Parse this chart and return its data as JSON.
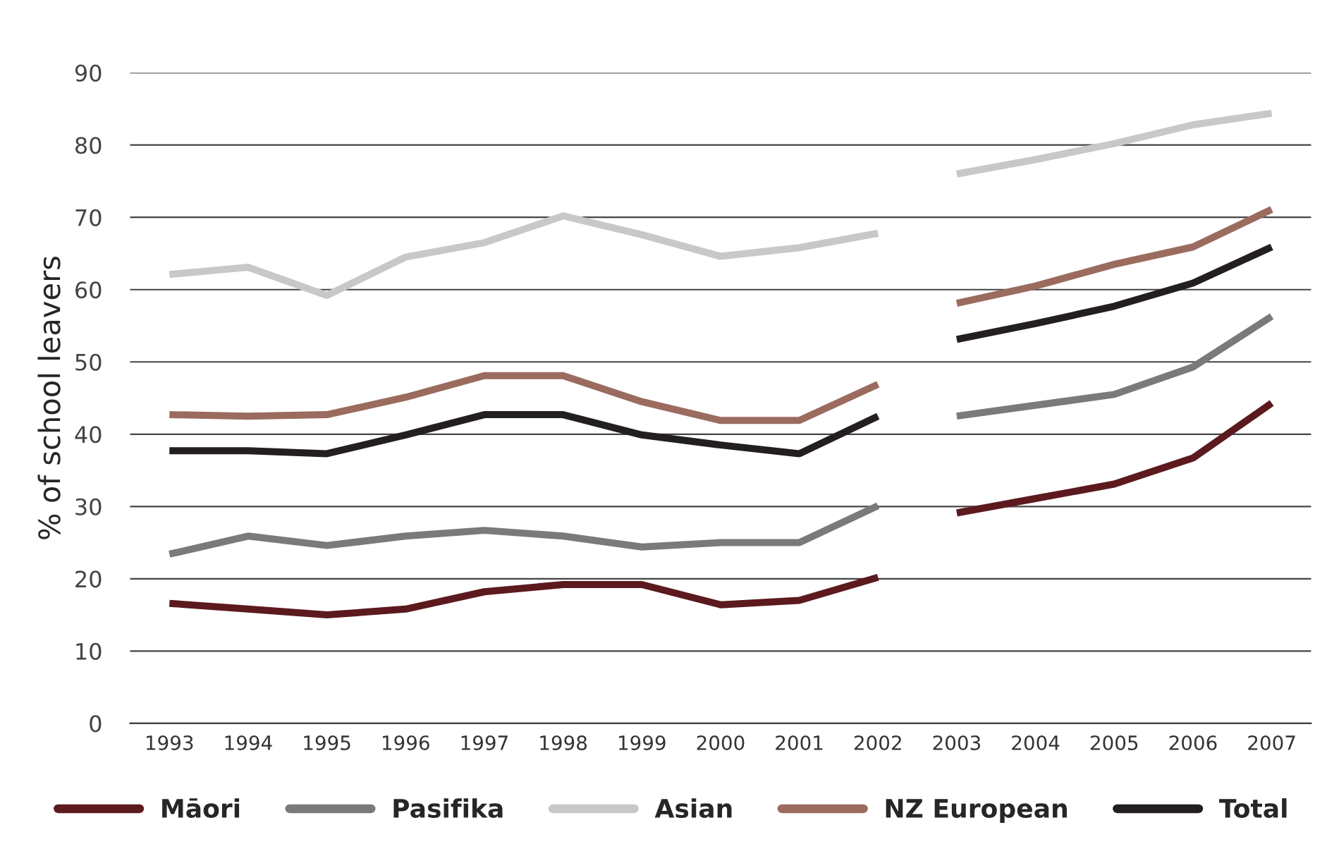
{
  "chart_data": {
    "type": "line",
    "ylabel": "% of school leavers",
    "series": [
      {
        "name": "Māori",
        "color": "#5c1a1e",
        "x": [
          1993,
          1994,
          1995,
          1996,
          1997,
          1998,
          1999,
          2000,
          2001,
          2002
        ],
        "values": [
          16.6,
          15.8,
          15.0,
          15.8,
          18.2,
          19.2,
          19.2,
          16.4,
          17.0,
          20.2
        ]
      },
      {
        "color": "#5c1a1e",
        "x": [
          2003,
          2004,
          2005,
          2006,
          2007
        ],
        "values": [
          29.1,
          31.1,
          33.1,
          36.7,
          44.3
        ]
      },
      {
        "name": "Pasifika",
        "color": "#7a7a7c",
        "x": [
          1993,
          1994,
          1995,
          1996,
          1997,
          1998,
          1999,
          2000,
          2001,
          2002
        ],
        "values": [
          23.4,
          25.9,
          24.6,
          25.9,
          26.7,
          25.9,
          24.4,
          25.0,
          25.0,
          30.1
        ]
      },
      {
        "color": "#7a7a7c",
        "x": [
          2003,
          2004,
          2005,
          2006,
          2007
        ],
        "values": [
          42.5,
          44.0,
          45.5,
          49.3,
          56.3
        ]
      },
      {
        "name": "Asian",
        "color": "#c8c8c8",
        "x": [
          1993,
          1994,
          1995,
          1996,
          1997,
          1998,
          1999,
          2000,
          2001,
          2002
        ],
        "values": [
          62.1,
          63.1,
          59.2,
          64.5,
          66.5,
          70.2,
          67.6,
          64.6,
          65.8,
          67.8
        ]
      },
      {
        "color": "#c8c8c8",
        "x": [
          2003,
          2004,
          2005,
          2006,
          2007
        ],
        "values": [
          76.0,
          78.0,
          80.2,
          82.8,
          84.4
        ]
      },
      {
        "name": "NZ European",
        "color": "#9a6b5e",
        "x": [
          1993,
          1994,
          1995,
          1996,
          1997,
          1998,
          1999,
          2000,
          2001,
          2002
        ],
        "values": [
          42.7,
          42.5,
          42.7,
          45.1,
          48.1,
          48.1,
          44.5,
          41.9,
          41.9,
          46.9
        ]
      },
      {
        "color": "#9a6b5e",
        "x": [
          2003,
          2004,
          2005,
          2006,
          2007
        ],
        "values": [
          58.1,
          60.5,
          63.5,
          65.9,
          71.1
        ]
      },
      {
        "name": "Total",
        "color": "#231f20",
        "x": [
          1993,
          1994,
          1995,
          1996,
          1997,
          1998,
          1999,
          2000,
          2001,
          2002
        ],
        "values": [
          37.7,
          37.7,
          37.3,
          39.9,
          42.7,
          42.7,
          39.9,
          38.5,
          37.3,
          42.5
        ]
      },
      {
        "color": "#231f20",
        "x": [
          2003,
          2004,
          2005,
          2006,
          2007
        ],
        "values": [
          53.1,
          55.3,
          57.7,
          60.9,
          65.9
        ]
      }
    ],
    "xlim": [
      1992.5,
      2007.5
    ],
    "xticks": [
      1993,
      1994,
      1995,
      1996,
      1997,
      1998,
      1999,
      2000,
      2001,
      2002,
      2003,
      2004,
      2005,
      2006,
      2007
    ],
    "ylim": [
      0,
      90
    ],
    "yticks": [
      0,
      10,
      20,
      30,
      40,
      50,
      60,
      70,
      80,
      90
    ],
    "grid": "y",
    "legend": "bottom",
    "marker": "none",
    "line_style": "solid"
  }
}
